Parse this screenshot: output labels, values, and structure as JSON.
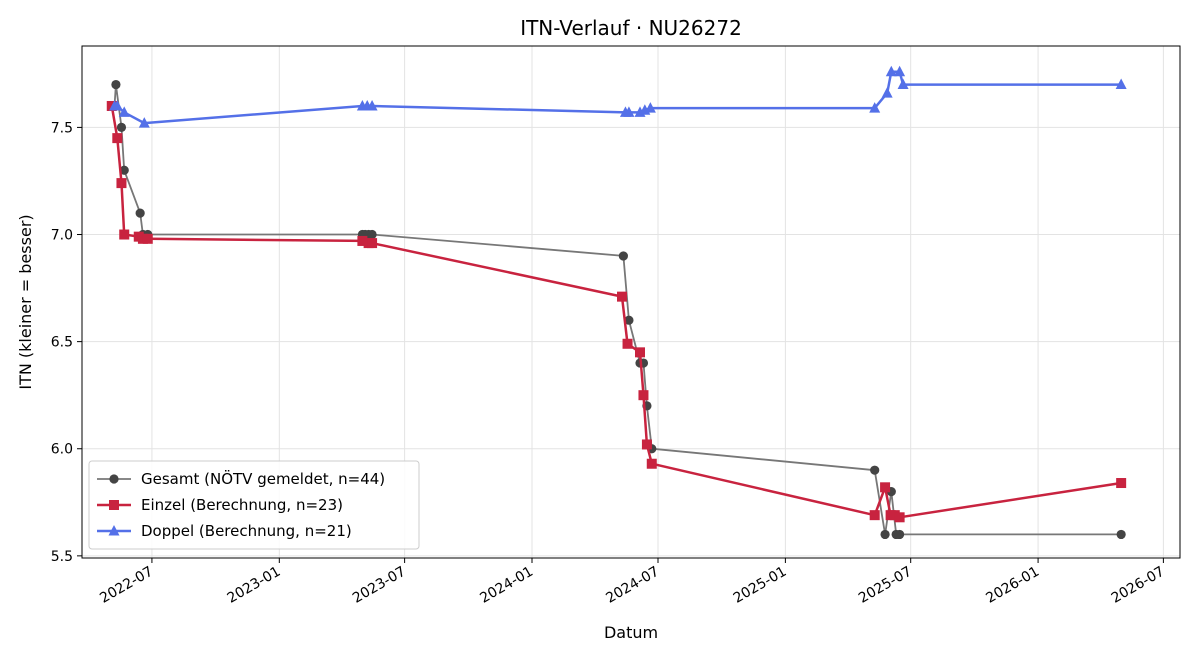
{
  "chart_data": {
    "type": "line",
    "title": "ITN-Verlauf · NU26272",
    "xlabel": "Datum",
    "ylabel": "ITN  (kleiner = besser)",
    "x_type": "date",
    "xlim": [
      "2022-03-22",
      "2026-07-25"
    ],
    "ylim": [
      5.49,
      7.88
    ],
    "yticks": [
      5.5,
      6.0,
      6.5,
      7.0,
      7.5
    ],
    "ytick_labels": [
      "5.5",
      "6.0",
      "6.5",
      "7.0",
      "7.5"
    ],
    "xticks": [
      "2022-07-01",
      "2023-01-01",
      "2023-07-01",
      "2024-01-01",
      "2024-07-01",
      "2025-01-01",
      "2025-07-01",
      "2026-01-01",
      "2026-07-01"
    ],
    "xtick_labels": [
      "2022-07",
      "2023-01",
      "2023-07",
      "2024-01",
      "2024-07",
      "2025-01",
      "2025-07",
      "2026-01",
      "2026-07"
    ],
    "grid": true,
    "legend_position": "lower-left",
    "series": [
      {
        "name": "Gesamt (NÖTV gemeldet, n=44)",
        "color": "#444444",
        "line_color": "#777777",
        "marker": "circle",
        "points": [
          [
            "2022-05-08",
            7.6
          ],
          [
            "2022-05-10",
            7.7
          ],
          [
            "2022-05-18",
            7.5
          ],
          [
            "2022-05-22",
            7.3
          ],
          [
            "2022-06-14",
            7.1
          ],
          [
            "2022-06-18",
            7.0
          ],
          [
            "2022-06-25",
            7.0
          ],
          [
            "2023-05-01",
            7.0
          ],
          [
            "2023-05-05",
            7.0
          ],
          [
            "2023-05-10",
            7.0
          ],
          [
            "2023-05-15",
            7.0
          ],
          [
            "2024-05-12",
            6.9
          ],
          [
            "2024-05-20",
            6.6
          ],
          [
            "2024-06-05",
            6.4
          ],
          [
            "2024-06-10",
            6.4
          ],
          [
            "2024-06-15",
            6.2
          ],
          [
            "2024-06-22",
            6.0
          ],
          [
            "2025-05-10",
            5.9
          ],
          [
            "2025-05-25",
            5.6
          ],
          [
            "2025-06-03",
            5.8
          ],
          [
            "2025-06-10",
            5.6
          ],
          [
            "2025-06-15",
            5.6
          ],
          [
            "2026-05-01",
            5.6
          ]
        ]
      },
      {
        "name": "Einzel (Berechnung, n=23)",
        "color": "#c8233f",
        "marker": "square",
        "points": [
          [
            "2022-05-04",
            7.6
          ],
          [
            "2022-05-12",
            7.45
          ],
          [
            "2022-05-18",
            7.24
          ],
          [
            "2022-05-22",
            7.0
          ],
          [
            "2022-06-12",
            6.99
          ],
          [
            "2022-06-18",
            6.98
          ],
          [
            "2022-06-25",
            6.98
          ],
          [
            "2023-05-01",
            6.97
          ],
          [
            "2023-05-10",
            6.96
          ],
          [
            "2023-05-15",
            6.96
          ],
          [
            "2024-05-10",
            6.71
          ],
          [
            "2024-05-18",
            6.49
          ],
          [
            "2024-06-05",
            6.45
          ],
          [
            "2024-06-10",
            6.25
          ],
          [
            "2024-06-15",
            6.02
          ],
          [
            "2024-06-22",
            5.93
          ],
          [
            "2025-05-10",
            5.69
          ],
          [
            "2025-05-25",
            5.82
          ],
          [
            "2025-06-02",
            5.69
          ],
          [
            "2025-06-08",
            5.69
          ],
          [
            "2025-06-15",
            5.68
          ],
          [
            "2026-05-01",
            5.84
          ]
        ]
      },
      {
        "name": "Doppel (Berechnung, n=21)",
        "color": "#5470e8",
        "marker": "triangle",
        "points": [
          [
            "2022-05-08",
            7.6
          ],
          [
            "2022-05-12",
            7.6
          ],
          [
            "2022-05-22",
            7.57
          ],
          [
            "2022-06-20",
            7.52
          ],
          [
            "2023-05-01",
            7.6
          ],
          [
            "2023-05-08",
            7.6
          ],
          [
            "2023-05-15",
            7.6
          ],
          [
            "2024-05-15",
            7.57
          ],
          [
            "2024-05-20",
            7.57
          ],
          [
            "2024-06-05",
            7.57
          ],
          [
            "2024-06-12",
            7.58
          ],
          [
            "2024-06-20",
            7.59
          ],
          [
            "2025-05-10",
            7.59
          ],
          [
            "2025-05-28",
            7.66
          ],
          [
            "2025-06-03",
            7.76
          ],
          [
            "2025-06-15",
            7.76
          ],
          [
            "2025-06-20",
            7.7
          ],
          [
            "2026-05-01",
            7.7
          ]
        ]
      }
    ]
  }
}
